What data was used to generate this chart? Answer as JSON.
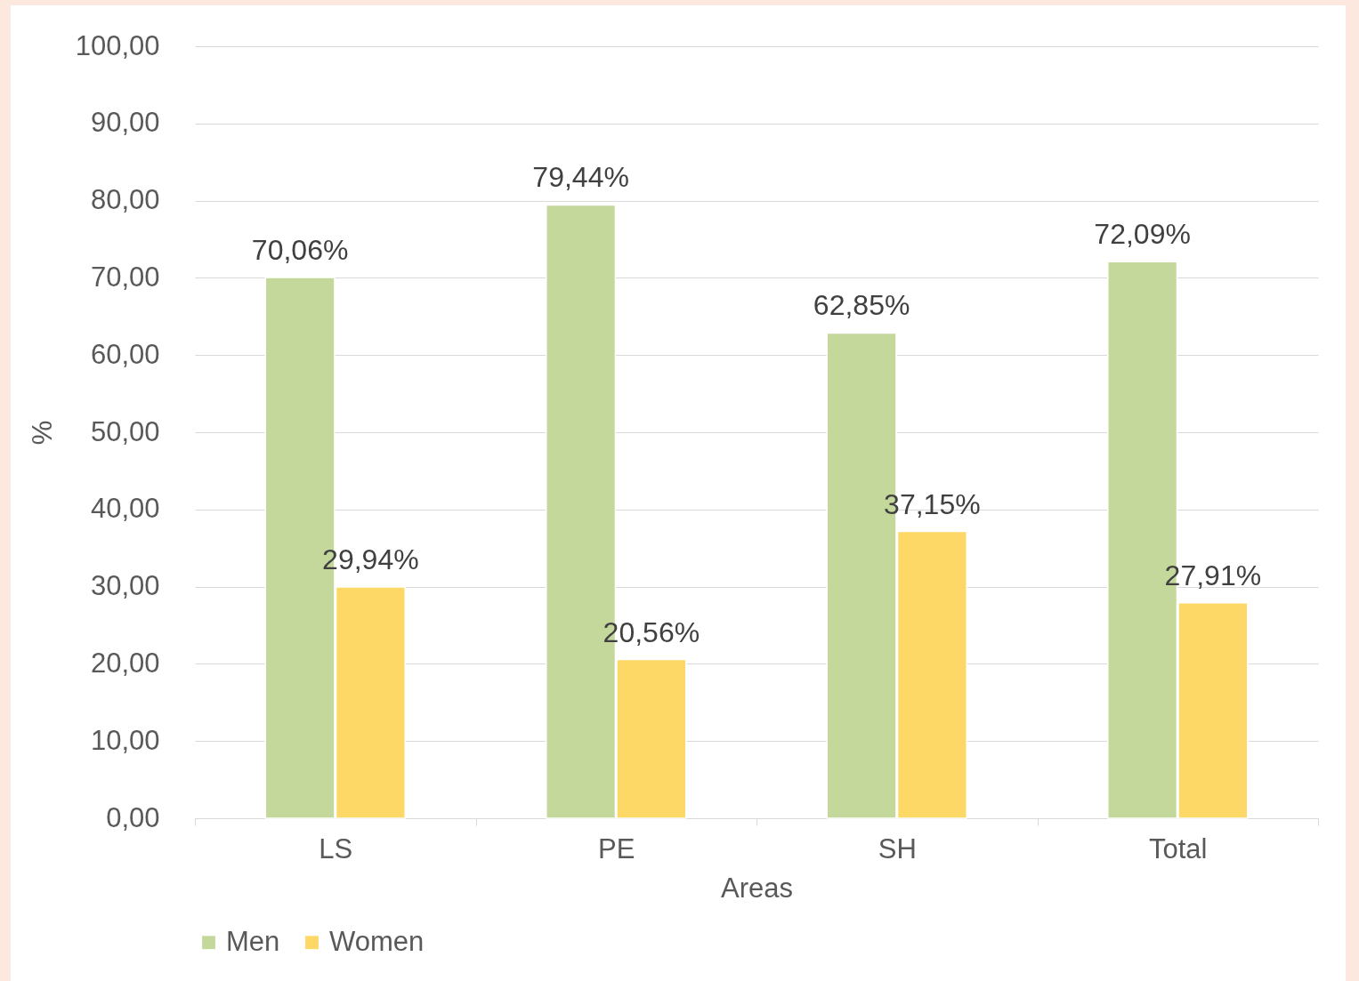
{
  "chart_data": {
    "type": "bar",
    "xlabel": "Areas",
    "ylabel": "%",
    "categories": [
      "LS",
      "PE",
      "SH",
      "Total"
    ],
    "series": [
      {
        "name": "Men",
        "color": "#c5d89c",
        "values": [
          70.06,
          79.44,
          62.85,
          72.09
        ],
        "value_labels": [
          "70,06%",
          "79,44%",
          "62,85%",
          "72,09%"
        ]
      },
      {
        "name": "Women",
        "color": "#fdd866",
        "values": [
          29.94,
          20.56,
          37.15,
          27.91
        ],
        "value_labels": [
          "29,94%",
          "20,56%",
          "37,15%",
          "27,91%"
        ]
      }
    ],
    "ylim": [
      0,
      100
    ],
    "yticks": [
      {
        "value": 0,
        "label": "0,00"
      },
      {
        "value": 10,
        "label": "10,00"
      },
      {
        "value": 20,
        "label": "20,00"
      },
      {
        "value": 30,
        "label": "30,00"
      },
      {
        "value": 40,
        "label": "40,00"
      },
      {
        "value": 50,
        "label": "50,00"
      },
      {
        "value": 60,
        "label": "60,00"
      },
      {
        "value": 70,
        "label": "70,00"
      },
      {
        "value": 80,
        "label": "80,00"
      },
      {
        "value": 90,
        "label": "90,00"
      },
      {
        "value": 100,
        "label": "100,00"
      }
    ],
    "grid": "y",
    "legend": "bottom"
  }
}
